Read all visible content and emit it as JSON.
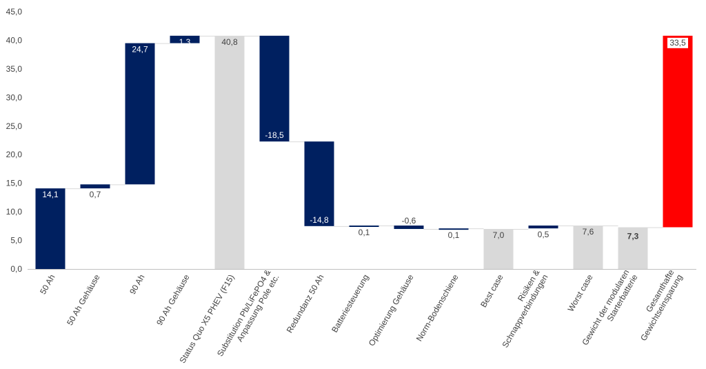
{
  "chart_data": {
    "type": "bar",
    "subtype": "waterfall",
    "title": "",
    "xlabel": "",
    "ylabel": "",
    "ylim": [
      0,
      45
    ],
    "y_ticks": [
      "0,0",
      "5,0",
      "10,0",
      "15,0",
      "20,0",
      "25,0",
      "30,0",
      "35,0",
      "40,0",
      "45,0"
    ],
    "grid": false,
    "legend": "none",
    "colors": {
      "change": "#002060",
      "total": "#d9d9d9",
      "highlight": "#ff0000",
      "label_dark": "#404040",
      "label_light": "#ffffff"
    },
    "bars": [
      {
        "category": "50 Ah",
        "base": 0,
        "top": 14.1,
        "label": "14,1",
        "kind": "change",
        "label_pos": "inside_top"
      },
      {
        "category": "50 Ah Gehäuse",
        "base": 14.1,
        "top": 14.8,
        "label": "0,7",
        "kind": "change",
        "label_pos": "below"
      },
      {
        "category": "90 Ah",
        "base": 14.8,
        "top": 39.5,
        "label": "24,7",
        "kind": "change",
        "label_pos": "inside_top"
      },
      {
        "category": "90 Ah Gehäuse",
        "base": 39.5,
        "top": 40.8,
        "label": "1,3",
        "kind": "change",
        "label_pos": "inside_top"
      },
      {
        "category": "Status Quo X5 PHEV (F15)",
        "base": 0,
        "top": 40.8,
        "label": "40,8",
        "kind": "total",
        "label_pos": "inside_top"
      },
      {
        "category": "Substitution Pb/LiFePO4 & Anpassung Pole etc.",
        "base": 22.3,
        "top": 40.8,
        "label": "-18,5",
        "kind": "change",
        "label_pos": "inside_bottom"
      },
      {
        "category": "Redundanz 50 Ah",
        "base": 7.5,
        "top": 22.3,
        "label": "-14,8",
        "kind": "change",
        "label_pos": "inside_bottom"
      },
      {
        "category": "Batteriesteuerung",
        "base": 7.5,
        "top": 7.6,
        "label": "0,1",
        "kind": "change",
        "label_pos": "below"
      },
      {
        "category": "Optimierung Gehäuse",
        "base": 7.0,
        "top": 7.6,
        "label": "-0,6",
        "kind": "change",
        "label_pos": "above"
      },
      {
        "category": "Norm-Bodenschiene",
        "base": 7.0,
        "top": 7.1,
        "label": "0,1",
        "kind": "change",
        "label_pos": "below"
      },
      {
        "category": "Best case",
        "base": 0,
        "top": 7.0,
        "label": "7,0",
        "kind": "total",
        "label_pos": "inside_top"
      },
      {
        "category": "Risiken & Schnappverbindungen",
        "base": 7.1,
        "top": 7.6,
        "label": "0,5",
        "kind": "change",
        "label_pos": "below"
      },
      {
        "category": "Worst case",
        "base": 0,
        "top": 7.6,
        "label": "7,6",
        "kind": "total",
        "label_pos": "inside_top"
      },
      {
        "category": "Gewicht der modularen Starterbatterie",
        "base": 0,
        "top": 7.3,
        "label": "7,3",
        "kind": "total",
        "label_pos": "inside_top",
        "emphasis": true
      },
      {
        "category": "Gesamthafte Gewichtseinsparung",
        "base": 7.3,
        "top": 40.8,
        "label": "33,5",
        "kind": "highlight",
        "label_pos": "inside_top_boxed"
      }
    ]
  }
}
